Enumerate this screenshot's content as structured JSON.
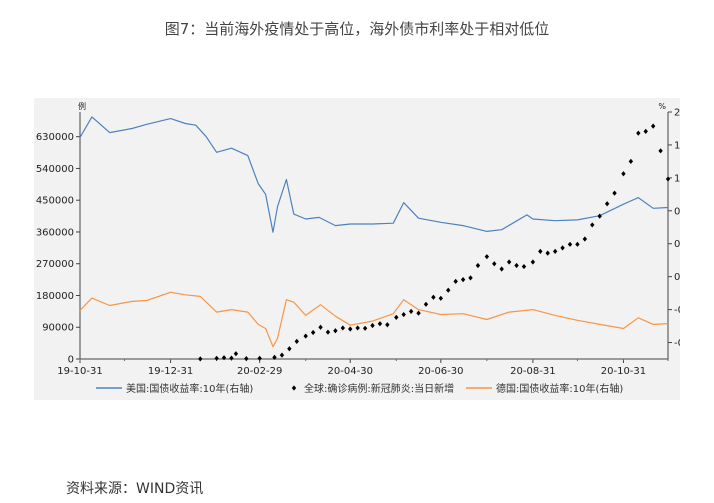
{
  "header": {
    "title": "图7：当前海外疫情处于高位，海外债市利率处于相对低位"
  },
  "footer": {
    "source": "资料来源：WIND资讯"
  },
  "chart_data": {
    "type": "line",
    "x_ticks": [
      "19-10-31",
      "19-12-31",
      "20-02-29",
      "20-04-30",
      "20-06-30",
      "20-08-31",
      "20-10-31"
    ],
    "x_range": [
      "2019-10-31",
      "2020-11-30"
    ],
    "y_left": {
      "unit": "例",
      "ticks": [
        "0",
        "90000",
        "180000",
        "270000",
        "360000",
        "450000",
        "540000",
        "630000"
      ],
      "range": [
        0,
        700000
      ]
    },
    "y_right": {
      "unit": "%",
      "ticks": [
        "-0.8",
        "-0.4",
        "0.0",
        "0.4",
        "0.8",
        "1.2",
        "1.6",
        "2.0"
      ],
      "range": [
        -1.0,
        2.0
      ]
    },
    "series": [
      {
        "name": "美国:国债收益率:10年(右轴)",
        "axis": "right",
        "style": "line",
        "color": "#4f81bd",
        "points": [
          [
            "2019-10-31",
            1.69
          ],
          [
            "2019-11-08",
            1.94
          ],
          [
            "2019-11-20",
            1.75
          ],
          [
            "2019-12-05",
            1.8
          ],
          [
            "2019-12-15",
            1.85
          ],
          [
            "2019-12-31",
            1.92
          ],
          [
            "2020-01-10",
            1.86
          ],
          [
            "2020-01-17",
            1.84
          ],
          [
            "2020-01-24",
            1.7
          ],
          [
            "2020-01-31",
            1.51
          ],
          [
            "2020-02-10",
            1.56
          ],
          [
            "2020-02-21",
            1.47
          ],
          [
            "2020-02-28",
            1.13
          ],
          [
            "2020-03-04",
            1.0
          ],
          [
            "2020-03-09",
            0.54
          ],
          [
            "2020-03-12",
            0.85
          ],
          [
            "2020-03-18",
            1.18
          ],
          [
            "2020-03-23",
            0.76
          ],
          [
            "2020-03-31",
            0.7
          ],
          [
            "2020-04-09",
            0.72
          ],
          [
            "2020-04-20",
            0.62
          ],
          [
            "2020-04-30",
            0.64
          ],
          [
            "2020-05-15",
            0.64
          ],
          [
            "2020-05-29",
            0.65
          ],
          [
            "2020-06-05",
            0.9
          ],
          [
            "2020-06-15",
            0.71
          ],
          [
            "2020-06-30",
            0.66
          ],
          [
            "2020-07-15",
            0.62
          ],
          [
            "2020-07-31",
            0.55
          ],
          [
            "2020-08-10",
            0.57
          ],
          [
            "2020-08-27",
            0.75
          ],
          [
            "2020-08-31",
            0.7
          ],
          [
            "2020-09-15",
            0.68
          ],
          [
            "2020-09-30",
            0.69
          ],
          [
            "2020-10-15",
            0.74
          ],
          [
            "2020-10-31",
            0.88
          ],
          [
            "2020-11-10",
            0.96
          ],
          [
            "2020-11-20",
            0.83
          ],
          [
            "2020-11-30",
            0.84
          ]
        ]
      },
      {
        "name": "全球:确诊病例:新冠肺炎:当日新增",
        "axis": "left",
        "style": "points",
        "color": "#000000",
        "points": [
          [
            "2020-01-20",
            300
          ],
          [
            "2020-01-31",
            2000
          ],
          [
            "2020-02-05",
            3700
          ],
          [
            "2020-02-10",
            2500
          ],
          [
            "2020-02-13",
            15000
          ],
          [
            "2020-02-20",
            1000
          ],
          [
            "2020-02-29",
            2000
          ],
          [
            "2020-03-10",
            4500
          ],
          [
            "2020-03-15",
            11000
          ],
          [
            "2020-03-20",
            29000
          ],
          [
            "2020-03-25",
            50000
          ],
          [
            "2020-03-31",
            65000
          ],
          [
            "2020-04-05",
            75000
          ],
          [
            "2020-04-10",
            90000
          ],
          [
            "2020-04-15",
            76000
          ],
          [
            "2020-04-20",
            80000
          ],
          [
            "2020-04-25",
            88000
          ],
          [
            "2020-04-30",
            85000
          ],
          [
            "2020-05-05",
            88000
          ],
          [
            "2020-05-10",
            87000
          ],
          [
            "2020-05-15",
            95000
          ],
          [
            "2020-05-20",
            100000
          ],
          [
            "2020-05-25",
            97000
          ],
          [
            "2020-05-31",
            118000
          ],
          [
            "2020-06-05",
            126000
          ],
          [
            "2020-06-10",
            135000
          ],
          [
            "2020-06-15",
            130000
          ],
          [
            "2020-06-20",
            155000
          ],
          [
            "2020-06-25",
            175000
          ],
          [
            "2020-06-30",
            172000
          ],
          [
            "2020-07-05",
            195000
          ],
          [
            "2020-07-10",
            220000
          ],
          [
            "2020-07-15",
            225000
          ],
          [
            "2020-07-20",
            230000
          ],
          [
            "2020-07-25",
            265000
          ],
          [
            "2020-07-31",
            290000
          ],
          [
            "2020-08-05",
            270000
          ],
          [
            "2020-08-10",
            255000
          ],
          [
            "2020-08-15",
            275000
          ],
          [
            "2020-08-20",
            265000
          ],
          [
            "2020-08-25",
            262000
          ],
          [
            "2020-08-31",
            275000
          ],
          [
            "2020-09-05",
            305000
          ],
          [
            "2020-09-10",
            300000
          ],
          [
            "2020-09-15",
            305000
          ],
          [
            "2020-09-20",
            315000
          ],
          [
            "2020-09-25",
            325000
          ],
          [
            "2020-09-30",
            325000
          ],
          [
            "2020-10-05",
            340000
          ],
          [
            "2020-10-10",
            380000
          ],
          [
            "2020-10-15",
            405000
          ],
          [
            "2020-10-20",
            440000
          ],
          [
            "2020-10-25",
            470000
          ],
          [
            "2020-10-31",
            525000
          ],
          [
            "2020-11-05",
            560000
          ],
          [
            "2020-11-10",
            640000
          ],
          [
            "2020-11-15",
            645000
          ],
          [
            "2020-11-20",
            660000
          ],
          [
            "2020-11-25",
            590000
          ],
          [
            "2020-11-30",
            510000
          ]
        ]
      },
      {
        "name": "德国:国债收益率:10年(右轴)",
        "axis": "right",
        "style": "line",
        "color": "#f79646",
        "points": [
          [
            "2019-10-31",
            -0.41
          ],
          [
            "2019-11-08",
            -0.26
          ],
          [
            "2019-11-20",
            -0.35
          ],
          [
            "2019-12-05",
            -0.3
          ],
          [
            "2019-12-15",
            -0.29
          ],
          [
            "2019-12-31",
            -0.19
          ],
          [
            "2020-01-10",
            -0.22
          ],
          [
            "2020-01-20",
            -0.24
          ],
          [
            "2020-01-31",
            -0.43
          ],
          [
            "2020-02-10",
            -0.4
          ],
          [
            "2020-02-21",
            -0.43
          ],
          [
            "2020-02-28",
            -0.58
          ],
          [
            "2020-03-04",
            -0.63
          ],
          [
            "2020-03-09",
            -0.85
          ],
          [
            "2020-03-12",
            -0.75
          ],
          [
            "2020-03-18",
            -0.28
          ],
          [
            "2020-03-23",
            -0.31
          ],
          [
            "2020-03-31",
            -0.47
          ],
          [
            "2020-04-10",
            -0.34
          ],
          [
            "2020-04-20",
            -0.48
          ],
          [
            "2020-04-30",
            -0.59
          ],
          [
            "2020-05-15",
            -0.54
          ],
          [
            "2020-05-29",
            -0.45
          ],
          [
            "2020-06-05",
            -0.28
          ],
          [
            "2020-06-15",
            -0.4
          ],
          [
            "2020-06-30",
            -0.46
          ],
          [
            "2020-07-15",
            -0.45
          ],
          [
            "2020-07-31",
            -0.52
          ],
          [
            "2020-08-15",
            -0.43
          ],
          [
            "2020-08-31",
            -0.4
          ],
          [
            "2020-09-15",
            -0.47
          ],
          [
            "2020-09-30",
            -0.53
          ],
          [
            "2020-10-15",
            -0.58
          ],
          [
            "2020-10-31",
            -0.63
          ],
          [
            "2020-11-10",
            -0.5
          ],
          [
            "2020-11-20",
            -0.58
          ],
          [
            "2020-11-30",
            -0.57
          ]
        ]
      }
    ],
    "legend": {
      "placement": "bottom"
    },
    "grid": false
  }
}
